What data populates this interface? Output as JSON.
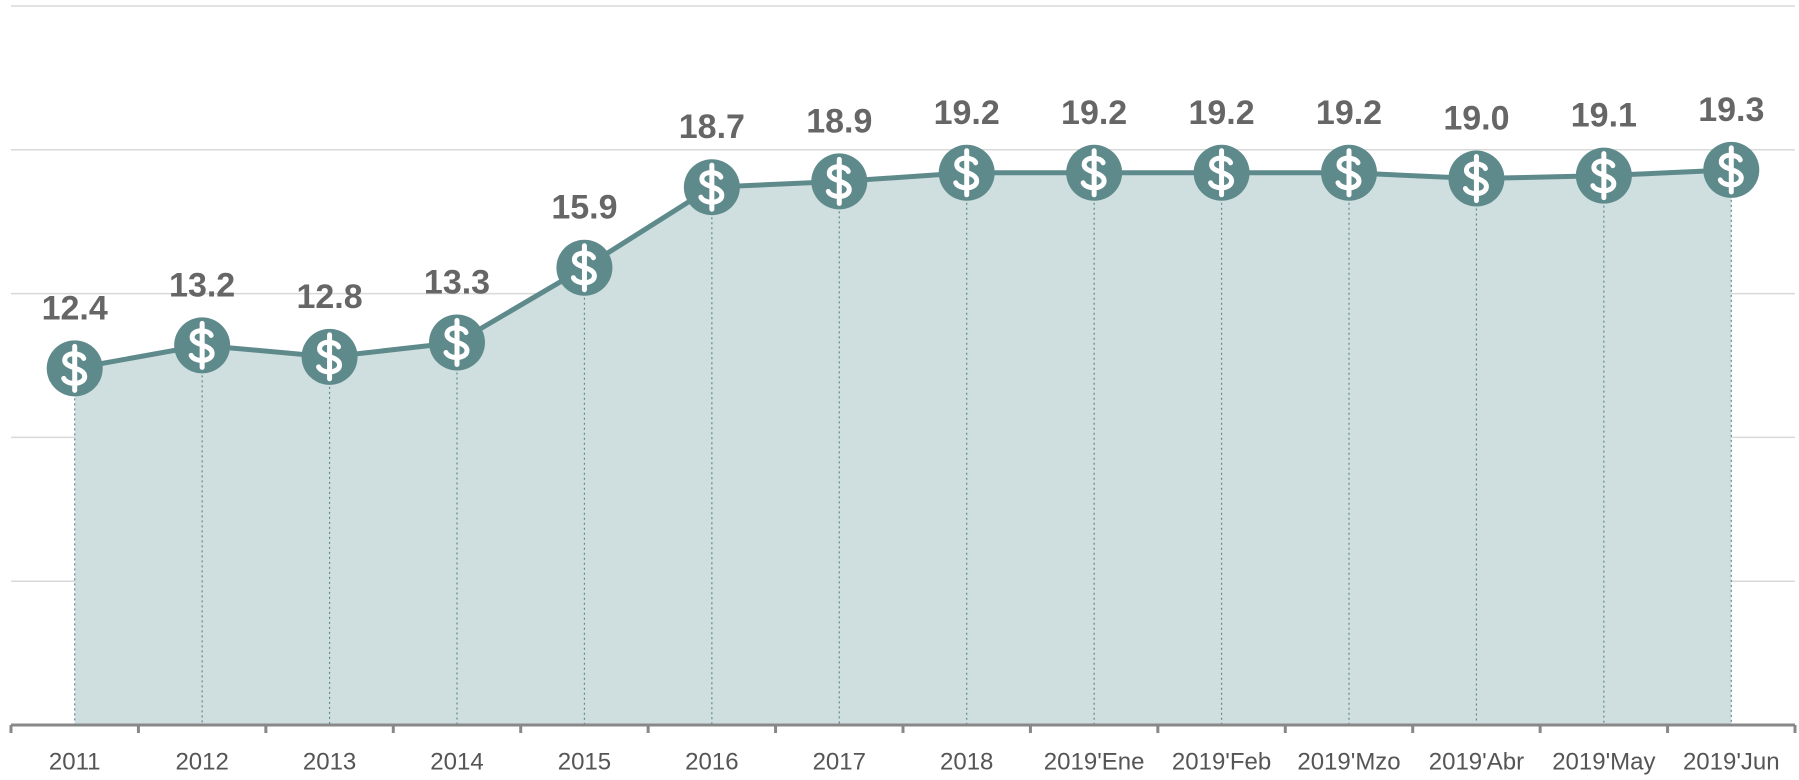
{
  "chart_data": {
    "type": "area",
    "categories": [
      "2011",
      "2012",
      "2013",
      "2014",
      "2015",
      "2016",
      "2017",
      "2018",
      "2019'Ene",
      "2019'Feb",
      "2019'Mzo",
      "2019'Abr",
      "2019'May",
      "2019'Jun"
    ],
    "values": [
      12.4,
      13.2,
      12.8,
      13.3,
      15.9,
      18.7,
      18.9,
      19.2,
      19.2,
      19.2,
      19.2,
      19.0,
      19.1,
      19.3
    ],
    "value_labels": [
      "12.4",
      "13.2",
      "12.8",
      "13.3",
      "15.9",
      "18.7",
      "18.9",
      "19.2",
      "19.2",
      "19.2",
      "19.2",
      "19.0",
      "19.1",
      "19.3"
    ],
    "color": "#5f8a8b",
    "fill": "#cfdfe0",
    "ylim": [
      0,
      25
    ],
    "yticks": [
      0,
      5,
      10,
      15,
      20,
      25
    ],
    "grid": true
  }
}
